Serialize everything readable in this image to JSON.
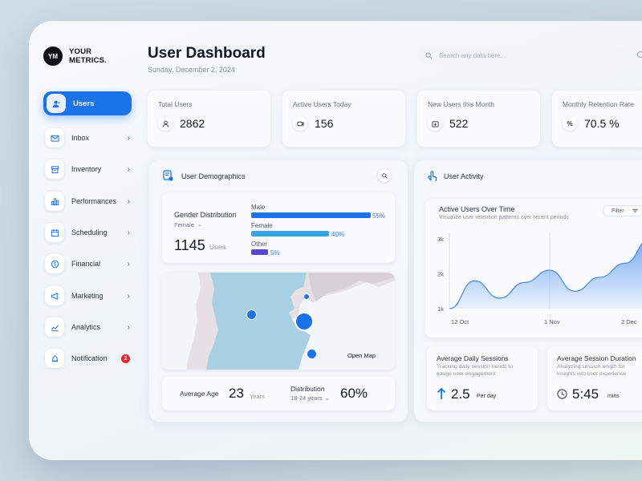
{
  "brand": {
    "mark": "YM",
    "line1": "YOUR",
    "line2": "METRICS."
  },
  "header": {
    "title": "User Dashboard",
    "date": "Sunday, December 2, 2024",
    "search_placeholder": "Search any data here..."
  },
  "sidebar": {
    "items": [
      {
        "label": "Users",
        "icon": "users-icon",
        "active": true
      },
      {
        "label": "Inbox",
        "icon": "inbox-icon"
      },
      {
        "label": "Inventory",
        "icon": "inventory-icon"
      },
      {
        "label": "Performances",
        "icon": "bar-chart-icon"
      },
      {
        "label": "Scheduling",
        "icon": "calendar-icon"
      },
      {
        "label": "Financial",
        "icon": "dollar-icon"
      },
      {
        "label": "Marketing",
        "icon": "megaphone-icon"
      },
      {
        "label": "Analytics",
        "icon": "analytics-icon"
      },
      {
        "label": "Notification",
        "icon": "alarm-icon",
        "badge": "2"
      }
    ]
  },
  "stats": [
    {
      "label": "Total Users",
      "value": "2862",
      "icon": "user-icon"
    },
    {
      "label": "Active Users Today",
      "value": "156",
      "icon": "video-user-icon"
    },
    {
      "label": "New Users this Month",
      "value": "522",
      "icon": "calendar-plus-icon"
    },
    {
      "label": "Monthly Retention Rate",
      "value": "70.5 %",
      "icon": "percent-icon"
    }
  ],
  "demographics": {
    "title": "User Demographics",
    "gender_title": "Gender Distribution",
    "gender_filter": "Female",
    "total": "1145",
    "total_unit": "Users",
    "bars": [
      {
        "label": "Male",
        "pct": "55%",
        "value": 55,
        "color": "#1a73e8"
      },
      {
        "label": "Female",
        "pct": "40%",
        "value": 40,
        "color": "#35a3e6"
      },
      {
        "label": "Other",
        "pct": "5%",
        "value": 5,
        "color": "#5546d6"
      }
    ],
    "map_link": "Open Map",
    "avg_age_label": "Average Age",
    "avg_age": "23",
    "avg_age_unit": "Years",
    "distribution_label": "Distribution",
    "distribution_range": "18-24 years",
    "distribution_value": "60%"
  },
  "activity": {
    "title": "User Activity",
    "chart_title": "Active Users Over Time",
    "chart_subtitle": "Visualize user retention patterns over recent periods",
    "filter_label": "Filter",
    "sessions_title": "Average Daily Sessions",
    "sessions_sub1": "Tracking daily session trends to",
    "sessions_sub2": "gauge user engagement",
    "sessions_value": "2.5",
    "sessions_unit": "Per day",
    "duration_title": "Average Session Duration",
    "duration_sub1": "Analyzing session length for",
    "duration_sub2": "insights into user experience",
    "duration_value": "5:45",
    "duration_unit": "mins"
  },
  "chart_data": {
    "type": "area",
    "title": "Active Users Over Time",
    "subtitle": "Visualize user retention patterns over recent periods",
    "x_ticks": [
      "12 Oct",
      "1 Nov",
      "2 Dec"
    ],
    "y_ticks": [
      "1k",
      "2k",
      "3k"
    ],
    "ylim": [
      1000,
      3000
    ],
    "x": [
      "12 Oct",
      "",
      "",
      "",
      "1 Nov",
      "",
      "",
      "",
      "2 Dec"
    ],
    "series": [
      {
        "values": [
          1000,
          1800,
          1300,
          1750,
          2100,
          1500,
          1900,
          2300,
          3000
        ]
      }
    ],
    "color": "#4a8ff0"
  }
}
